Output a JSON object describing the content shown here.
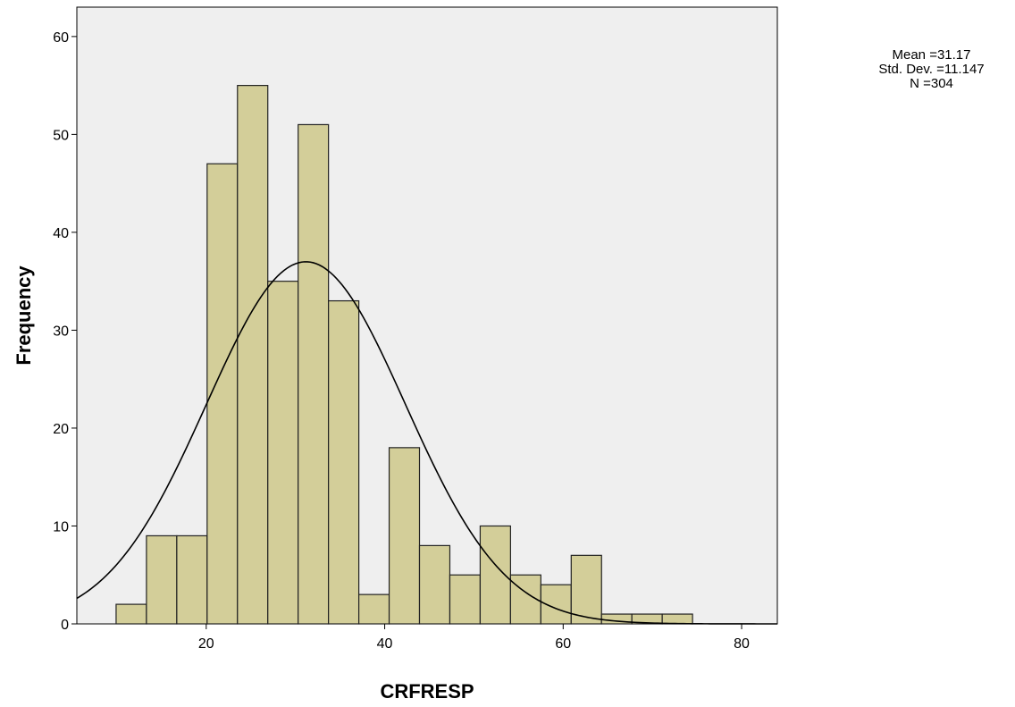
{
  "chart_data": {
    "type": "histogram",
    "xlabel": "CRFRESP",
    "ylabel": "Frequency",
    "xlim": [
      5.5,
      84
    ],
    "ylim": [
      0,
      63
    ],
    "x_ticks": [
      20,
      40,
      60,
      80
    ],
    "y_ticks": [
      0,
      10,
      20,
      30,
      40,
      50,
      60
    ],
    "bin_width": 3.4,
    "bins": [
      {
        "start": 9.9,
        "end": 13.3,
        "count": 2
      },
      {
        "start": 13.3,
        "end": 16.7,
        "count": 9
      },
      {
        "start": 16.7,
        "end": 20.1,
        "count": 9
      },
      {
        "start": 20.1,
        "end": 23.5,
        "count": 47
      },
      {
        "start": 23.5,
        "end": 26.9,
        "count": 55
      },
      {
        "start": 26.9,
        "end": 30.3,
        "count": 35
      },
      {
        "start": 30.3,
        "end": 33.7,
        "count": 51
      },
      {
        "start": 33.7,
        "end": 37.1,
        "count": 33
      },
      {
        "start": 37.1,
        "end": 40.5,
        "count": 3
      },
      {
        "start": 40.5,
        "end": 43.9,
        "count": 18
      },
      {
        "start": 43.9,
        "end": 47.3,
        "count": 8
      },
      {
        "start": 47.3,
        "end": 50.7,
        "count": 5
      },
      {
        "start": 50.7,
        "end": 54.1,
        "count": 10
      },
      {
        "start": 54.1,
        "end": 57.5,
        "count": 5
      },
      {
        "start": 57.5,
        "end": 60.9,
        "count": 4
      },
      {
        "start": 60.9,
        "end": 64.3,
        "count": 7
      },
      {
        "start": 64.3,
        "end": 67.7,
        "count": 1
      },
      {
        "start": 67.7,
        "end": 71.1,
        "count": 1
      },
      {
        "start": 71.1,
        "end": 74.5,
        "count": 1
      }
    ],
    "normal_curve": {
      "mean": 31.17,
      "std": 11.147,
      "n": 304
    },
    "colors": {
      "bar_fill": "#d3ce99",
      "bar_stroke": "#222222",
      "plot_bg": "#efefef",
      "curve": "#000000"
    },
    "grid": false
  },
  "stats": {
    "mean_label": "Mean =31.17",
    "std_label": "Std. Dev. =11.147",
    "n_label": "N =304"
  }
}
